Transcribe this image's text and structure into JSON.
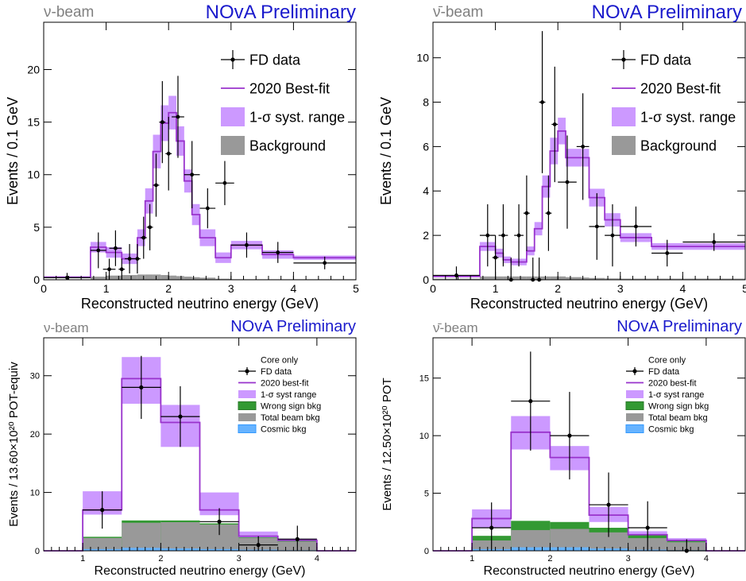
{
  "chart_data": [
    {
      "type": "line",
      "beam_label": "ν-beam",
      "prelim_label": "NOvA Preliminary",
      "xlabel": "Reconstructed neutrino energy (GeV)",
      "ylabel": "Events / 0.1 GeV",
      "xlim": [
        0,
        5
      ],
      "ylim": [
        0,
        24.5
      ],
      "xticks": [
        "0",
        "1",
        "2",
        "3",
        "4",
        "5"
      ],
      "yticks": [
        "0",
        "5",
        "10",
        "15",
        "20"
      ],
      "legend_position": "top-right",
      "legend": [
        "FD data",
        "2020 Best-fit",
        "1-σ syst. range",
        "Background"
      ],
      "colors": {
        "bestfit": "#9933cc",
        "band": "#cc99ff",
        "background": "#999999",
        "data": "#000000"
      },
      "bins": [
        0,
        0.75,
        1.0,
        1.25,
        1.5,
        1.625,
        1.75,
        1.875,
        2.0,
        2.125,
        2.25,
        2.375,
        2.5,
        2.75,
        3.0,
        3.5,
        4.0,
        5.0
      ],
      "bestfit": [
        0.25,
        3.1,
        2.6,
        2.0,
        4.0,
        7.5,
        12.2,
        14.9,
        15.9,
        13.2,
        9.4,
        6.2,
        4.0,
        2.1,
        3.3,
        2.4,
        2.1
      ],
      "band_lo": [
        0.2,
        2.6,
        2.1,
        1.5,
        3.2,
        6.3,
        10.6,
        13.2,
        14.3,
        11.8,
        8.3,
        5.2,
        3.2,
        1.6,
        2.9,
        2.0,
        1.9
      ],
      "band_hi": [
        0.3,
        3.6,
        3.1,
        2.5,
        4.8,
        8.7,
        13.8,
        16.6,
        17.5,
        14.6,
        10.5,
        7.2,
        4.8,
        2.6,
        3.7,
        2.8,
        2.3
      ],
      "background": [
        0.05,
        0.3,
        0.4,
        0.45,
        0.5,
        0.5,
        0.5,
        0.45,
        0.4,
        0.35,
        0.3,
        0.25,
        0.2,
        0.1,
        0.05,
        0.05,
        0.05
      ],
      "data": [
        {
          "x": 0.375,
          "y": 0.2,
          "xerr": 0.375,
          "yerr": 0.45
        },
        {
          "x": 0.875,
          "y": 2.8,
          "xerr": 0.125,
          "yerr": 1.7
        },
        {
          "x": 1.05,
          "y": 1.0,
          "xerr": 0.1,
          "yerr": 1.0
        },
        {
          "x": 1.15,
          "y": 3.0,
          "xerr": 0.1,
          "yerr": 1.7
        },
        {
          "x": 1.25,
          "y": 1.0,
          "xerr": 0.05,
          "yerr": 1.0
        },
        {
          "x": 1.375,
          "y": 2.0,
          "xerr": 0.075,
          "yerr": 1.4
        },
        {
          "x": 1.5,
          "y": 2.0,
          "xerr": 0.05,
          "yerr": 1.4
        },
        {
          "x": 1.6,
          "y": 4.0,
          "xerr": 0.05,
          "yerr": 2.0
        },
        {
          "x": 1.7,
          "y": 5.0,
          "xerr": 0.05,
          "yerr": 2.2
        },
        {
          "x": 1.8,
          "y": 9.0,
          "xerr": 0.05,
          "yerr": 3.0
        },
        {
          "x": 1.9,
          "y": 15.0,
          "xerr": 0.05,
          "yerr": 3.9
        },
        {
          "x": 2.0,
          "y": 12.0,
          "xerr": 0.05,
          "yerr": 3.5
        },
        {
          "x": 2.15,
          "y": 15.5,
          "xerr": 0.1,
          "yerr": 3.9
        },
        {
          "x": 2.375,
          "y": 10.0,
          "xerr": 0.125,
          "yerr": 3.2
        },
        {
          "x": 2.625,
          "y": 6.8,
          "xerr": 0.125,
          "yerr": 1.9
        },
        {
          "x": 2.9,
          "y": 9.2,
          "xerr": 0.15,
          "yerr": 2.1
        },
        {
          "x": 3.25,
          "y": 3.3,
          "xerr": 0.25,
          "yerr": 1.2
        },
        {
          "x": 3.75,
          "y": 2.6,
          "xerr": 0.25,
          "yerr": 1.0
        },
        {
          "x": 4.5,
          "y": 1.6,
          "xerr": 0.5,
          "yerr": 0.6
        }
      ]
    },
    {
      "type": "line",
      "beam_label": "ν̄-beam",
      "prelim_label": "NOvA Preliminary",
      "xlabel": "Reconstructed neutrino energy (GeV)",
      "ylabel": "Events / 0.1 GeV",
      "xlim": [
        0,
        5
      ],
      "ylim": [
        0,
        11.6
      ],
      "xticks": [
        "0",
        "1",
        "2",
        "3",
        "4",
        "5"
      ],
      "yticks": [
        "0",
        "2",
        "4",
        "6",
        "8",
        "10"
      ],
      "legend_position": "top-right",
      "legend": [
        "FD data",
        "2020 Best-fit",
        "1-σ syst. range",
        "Background"
      ],
      "colors": {
        "bestfit": "#9933cc",
        "band": "#cc99ff",
        "background": "#999999",
        "data": "#000000"
      },
      "bins": [
        0,
        0.75,
        1.0,
        1.125,
        1.25,
        1.375,
        1.5,
        1.625,
        1.75,
        1.875,
        2.0,
        2.125,
        2.375,
        2.5,
        2.75,
        3.0,
        3.5,
        5.0
      ],
      "bestfit": [
        0.15,
        1.5,
        1.2,
        0.9,
        0.8,
        0.8,
        1.3,
        2.3,
        4.2,
        5.8,
        6.7,
        5.5,
        5.5,
        3.7,
        2.7,
        1.9,
        1.5
      ],
      "band_lo": [
        0.12,
        1.3,
        1.0,
        0.75,
        0.65,
        0.65,
        1.1,
        2.0,
        3.7,
        5.2,
        6.1,
        5.1,
        5.1,
        3.3,
        2.4,
        1.7,
        1.35
      ],
      "band_hi": [
        0.18,
        1.7,
        1.4,
        1.05,
        0.95,
        0.95,
        1.5,
        2.6,
        4.7,
        6.4,
        7.3,
        5.9,
        5.9,
        4.1,
        3.0,
        2.1,
        1.65
      ],
      "background": [
        0.05,
        0.15,
        0.15,
        0.15,
        0.15,
        0.15,
        0.15,
        0.15,
        0.15,
        0.15,
        0.15,
        0.12,
        0.1,
        0.08,
        0.06,
        0.05,
        0.05
      ],
      "data": [
        {
          "x": 0.375,
          "y": 0.2,
          "xerr": 0.375,
          "yerr": 0.4
        },
        {
          "x": 0.875,
          "y": 2.0,
          "xerr": 0.125,
          "yerr": 1.4
        },
        {
          "x": 1.0,
          "y": 1.0,
          "xerr": 0.05,
          "yerr": 1.0
        },
        {
          "x": 1.125,
          "y": 2.0,
          "xerr": 0.075,
          "yerr": 1.4
        },
        {
          "x": 1.25,
          "y": 0.0,
          "xerr": 0.05,
          "yerr": 1.0
        },
        {
          "x": 1.375,
          "y": 2.0,
          "xerr": 0.075,
          "yerr": 1.4
        },
        {
          "x": 1.5,
          "y": 3.0,
          "xerr": 0.05,
          "yerr": 1.7
        },
        {
          "x": 1.6,
          "y": 0.0,
          "xerr": 0.05,
          "yerr": 1.0
        },
        {
          "x": 1.7,
          "y": 0.0,
          "xerr": 0.05,
          "yerr": 1.0
        },
        {
          "x": 1.75,
          "y": 8.0,
          "xerr": 0.05,
          "yerr": 3.2
        },
        {
          "x": 1.85,
          "y": 3.0,
          "xerr": 0.05,
          "yerr": 1.7
        },
        {
          "x": 1.95,
          "y": 7.0,
          "xerr": 0.05,
          "yerr": 2.6
        },
        {
          "x": 2.15,
          "y": 4.4,
          "xerr": 0.15,
          "yerr": 2.1
        },
        {
          "x": 2.4,
          "y": 6.0,
          "xerr": 0.1,
          "yerr": 2.4
        },
        {
          "x": 2.625,
          "y": 2.4,
          "xerr": 0.125,
          "yerr": 1.5
        },
        {
          "x": 2.875,
          "y": 2.0,
          "xerr": 0.125,
          "yerr": 1.4
        },
        {
          "x": 3.25,
          "y": 2.4,
          "xerr": 0.25,
          "yerr": 0.9
        },
        {
          "x": 3.75,
          "y": 1.2,
          "xerr": 0.25,
          "yerr": 0.6
        },
        {
          "x": 4.5,
          "y": 1.7,
          "xerr": 0.5,
          "yerr": 0.4
        }
      ]
    },
    {
      "type": "bar",
      "beam_label": "ν-beam",
      "prelim_label": "NOvA Preliminary",
      "xlabel": "Reconstructed neutrino energy (GeV)",
      "ylabel": "Events / 13.60×10²⁰ POT-equiv",
      "xlim": [
        0.5,
        4.5
      ],
      "ylim": [
        0,
        36.5
      ],
      "xticks": [
        "1",
        "2",
        "3",
        "4"
      ],
      "yticks": [
        "0",
        "10",
        "20",
        "30"
      ],
      "legend_position": "top-right",
      "legend_title": "Core only",
      "legend": [
        "FD data",
        "2020 best-fit",
        "1-σ syst range",
        "Wrong sign bkg",
        "Total beam bkg",
        "Cosmic bkg"
      ],
      "colors": {
        "bestfit": "#9933cc",
        "band": "#cc99ff",
        "wrongsign": "#339933",
        "beam": "#999999",
        "cosmic": "#66b3ff",
        "data": "#000000"
      },
      "bins": [
        1.0,
        1.5,
        2.0,
        2.5,
        3.0,
        3.5,
        4.0
      ],
      "bestfit": [
        7.0,
        29.5,
        22.0,
        7.0,
        2.5,
        1.8
      ],
      "band_lo": [
        6.2,
        25.2,
        17.8,
        6.1,
        2.1,
        1.6
      ],
      "band_hi": [
        10.2,
        33.2,
        25.0,
        10.0,
        3.3,
        2.1
      ],
      "wrongsign": [
        2.4,
        5.2,
        5.2,
        4.7,
        2.3,
        1.7
      ],
      "beam": [
        2.2,
        4.8,
        4.9,
        4.5,
        2.2,
        1.6
      ],
      "cosmic": [
        0.3,
        0.5,
        0.4,
        0.3,
        0.2,
        0.1
      ],
      "data": [
        {
          "x": 1.25,
          "y": 7.0,
          "xerr": 0.25,
          "yerr": 3.2
        },
        {
          "x": 1.75,
          "y": 28.0,
          "xerr": 0.25,
          "yerr": 5.4
        },
        {
          "x": 2.25,
          "y": 23.0,
          "xerr": 0.25,
          "yerr": 5.2
        },
        {
          "x": 2.75,
          "y": 5.0,
          "xerr": 0.25,
          "yerr": 2.3
        },
        {
          "x": 3.25,
          "y": 1.0,
          "xerr": 0.25,
          "yerr": 1.5
        },
        {
          "x": 3.75,
          "y": 2.0,
          "xerr": 0.25,
          "yerr": 2.3
        }
      ]
    },
    {
      "type": "bar",
      "beam_label": "ν̄-beam",
      "prelim_label": "NOvA Preliminary",
      "xlabel": "Reconstructed neutrino energy (GeV)",
      "ylabel": "Events / 12.50×10²⁰ POT",
      "xlim": [
        0.5,
        4.5
      ],
      "ylim": [
        0,
        18.5
      ],
      "xticks": [
        "1",
        "2",
        "3",
        "4"
      ],
      "yticks": [
        "0",
        "5",
        "10",
        "15"
      ],
      "legend_position": "top-right",
      "legend_title": "Core only",
      "legend": [
        "FD data",
        "2020 best-fit",
        "1-σ syst range",
        "Wrong sign bkg",
        "Total beam bkg",
        "Cosmic bkg"
      ],
      "colors": {
        "bestfit": "#9933cc",
        "band": "#cc99ff",
        "wrongsign": "#339933",
        "beam": "#999999",
        "cosmic": "#66b3ff",
        "data": "#000000"
      },
      "bins": [
        1.0,
        1.5,
        2.0,
        2.5,
        3.0,
        3.5,
        4.0
      ],
      "bestfit": [
        2.8,
        10.3,
        8.1,
        3.1,
        1.4,
        0.9
      ],
      "band_lo": [
        2.0,
        8.8,
        7.0,
        2.5,
        1.1,
        0.7
      ],
      "band_hi": [
        3.6,
        11.7,
        9.1,
        3.8,
        1.7,
        1.1
      ],
      "wrongsign": [
        1.3,
        2.6,
        2.5,
        2.0,
        1.4,
        0.9
      ],
      "beam": [
        0.9,
        1.8,
        1.9,
        1.6,
        1.1,
        0.75
      ],
      "cosmic": [
        0.15,
        0.3,
        0.3,
        0.2,
        0.1,
        0.05
      ],
      "data": [
        {
          "x": 1.25,
          "y": 2.0,
          "xerr": 0.25,
          "yerr": 2.2
        },
        {
          "x": 1.75,
          "y": 13.0,
          "xerr": 0.25,
          "yerr": 4.3
        },
        {
          "x": 2.25,
          "y": 10.0,
          "xerr": 0.25,
          "yerr": 3.8
        },
        {
          "x": 2.75,
          "y": 4.0,
          "xerr": 0.25,
          "yerr": 2.8
        },
        {
          "x": 3.25,
          "y": 2.0,
          "xerr": 0.25,
          "yerr": 2.3
        },
        {
          "x": 3.75,
          "y": 0.0,
          "xerr": 0.25,
          "yerr": 1.0
        }
      ]
    }
  ]
}
